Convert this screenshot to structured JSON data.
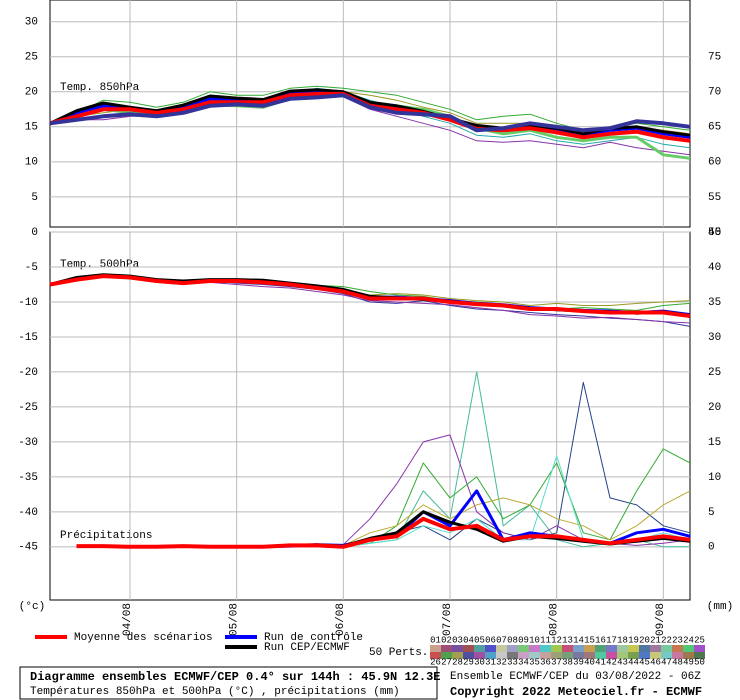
{
  "chart_data": [
    {
      "type": "line",
      "title": "Diagramme ensembles ECMWF/CEP 0.4° sur 144h : 45.9N 12.3E",
      "subtitle": "Températures 850hPa et 500hPa (°C) , précipitations (mm)",
      "credits": [
        "Ensemble ECMWF/CEP du 03/08/2022 - 06Z",
        "Copyright 2022 Meteociel.fr - ECMWF"
      ],
      "annotations": [
        "Temp. 850hPa"
      ],
      "x": [
        0,
        6,
        12,
        18,
        24,
        30,
        36,
        42,
        48,
        54,
        60,
        66,
        72,
        78,
        84,
        90,
        96,
        102,
        108,
        114,
        120,
        126,
        132,
        138,
        144
      ],
      "xlim": [
        0,
        144
      ],
      "ylim": [
        0.7,
        33.1
      ],
      "yticks": [
        5,
        10,
        15,
        20,
        25,
        30
      ],
      "y2lim": [
        50.7,
        83.1
      ],
      "y2ticks": [
        50,
        55,
        60,
        65,
        70,
        75
      ],
      "grid": true,
      "series": [
        {
          "name": "Moyenne des scénarios",
          "color": "#ff0000",
          "values": [
            15.5,
            16.5,
            17.5,
            17.5,
            17,
            17.5,
            18.5,
            18.5,
            18.5,
            19.5,
            19.7,
            19.7,
            18,
            17.5,
            17,
            16,
            14.7,
            14.5,
            14.8,
            14.2,
            13.5,
            14,
            14.3,
            13.5,
            13
          ]
        },
        {
          "name": "Run de contrôle",
          "color": "#0000ff",
          "values": [
            15.5,
            17,
            18,
            17.5,
            17,
            17.8,
            19,
            18.8,
            18.7,
            19.8,
            20,
            19.8,
            18.2,
            17.8,
            17,
            16,
            15,
            14.5,
            15,
            14.5,
            13.8,
            14.5,
            14.8,
            14,
            13.5
          ]
        },
        {
          "name": "Run CEP/ECMWF",
          "color": "#000000",
          "values": [
            15.5,
            17.3,
            18.4,
            17.8,
            17.3,
            18.1,
            19.4,
            19.1,
            18.9,
            20.1,
            20.3,
            20,
            18.5,
            18,
            17.2,
            16.2,
            15.2,
            14.8,
            15.2,
            14.8,
            14,
            14.8,
            15,
            14.3,
            13.8
          ]
        },
        {
          "color": "#33aa33",
          "values": [
            15.5,
            17,
            18.8,
            18.5,
            17.8,
            18.5,
            20,
            19.5,
            19.5,
            20.5,
            20.8,
            20.5,
            20,
            19.5,
            18.5,
            17.5,
            16,
            16.5,
            16.8,
            15.5,
            14.5,
            15,
            15.5,
            15,
            14.5
          ]
        },
        {
          "color": "#8833aa",
          "values": [
            15.5,
            16,
            16,
            16.5,
            16.5,
            17,
            18,
            18,
            18,
            19,
            19.5,
            19.3,
            17.5,
            16.5,
            15.5,
            14.5,
            13,
            12.8,
            13,
            12.5,
            12,
            12.8,
            12,
            11.5,
            11
          ]
        },
        {
          "color": "#999922",
          "values": [
            15.5,
            16.5,
            17,
            17.5,
            17.2,
            17.5,
            18.5,
            18.5,
            18.8,
            19.5,
            19.8,
            20,
            19.5,
            18.8,
            17.8,
            17,
            15.5,
            15.5,
            15.5,
            15,
            14,
            14.5,
            15,
            14.5,
            14
          ]
        },
        {
          "color": "#22aaaa",
          "values": [
            15.5,
            17,
            17.8,
            17.2,
            16.8,
            17.5,
            18.8,
            18.5,
            18.2,
            19.5,
            20.5,
            20,
            18.8,
            17.8,
            16.5,
            15.5,
            13.8,
            13.5,
            14,
            13,
            12.5,
            13,
            13.5,
            12.5,
            12
          ]
        },
        {
          "color": "#333399",
          "values": [
            15.5,
            16,
            16.5,
            16.8,
            16.5,
            17,
            18,
            18.2,
            18,
            19,
            19.2,
            19.5,
            17.8,
            17,
            16.8,
            16.5,
            14.5,
            14.8,
            15.5,
            15,
            14.5,
            14.8,
            15.8,
            15.5,
            15
          ]
        },
        {
          "color": "#66cc66",
          "values": [
            15.5,
            16.5,
            17.5,
            17,
            16.5,
            17.2,
            18.2,
            18,
            17.8,
            19,
            19.5,
            19.8,
            18.5,
            18,
            17.5,
            16.5,
            14.8,
            14,
            14.5,
            13.5,
            13,
            13.5,
            13.5,
            11,
            10.5
          ]
        }
      ],
      "perturbation_legend": {
        "label": "50 Perts.",
        "entries": [
          {
            "name": "01",
            "color": "#c8a08c"
          },
          {
            "name": "02",
            "color": "#a05078"
          },
          {
            "name": "03",
            "color": "#7850a0"
          },
          {
            "name": "04",
            "color": "#a05050"
          },
          {
            "name": "05",
            "color": "#50a0a0"
          },
          {
            "name": "06",
            "color": "#5050c8"
          },
          {
            "name": "07",
            "color": "#c8c8a0"
          },
          {
            "name": "08",
            "color": "#a0a0c8"
          },
          {
            "name": "09",
            "color": "#78c878"
          },
          {
            "name": "10",
            "color": "#c878c8"
          },
          {
            "name": "11",
            "color": "#50c8c8"
          },
          {
            "name": "12",
            "color": "#a0c850"
          },
          {
            "name": "13",
            "color": "#c85078"
          },
          {
            "name": "14",
            "color": "#78a0c8"
          },
          {
            "name": "15",
            "color": "#c8a050"
          },
          {
            "name": "16",
            "color": "#50a078"
          },
          {
            "name": "17",
            "color": "#7878c8"
          },
          {
            "name": "18",
            "color": "#a0c8a0"
          },
          {
            "name": "19",
            "color": "#c8c850"
          },
          {
            "name": "20",
            "color": "#5078a0"
          },
          {
            "name": "21",
            "color": "#a078a0"
          },
          {
            "name": "22",
            "color": "#78c8a0"
          },
          {
            "name": "23",
            "color": "#c87850"
          },
          {
            "name": "24",
            "color": "#50c878"
          },
          {
            "name": "25",
            "color": "#a050c8"
          },
          {
            "name": "26",
            "color": "#c85050"
          },
          {
            "name": "27",
            "color": "#50a050"
          },
          {
            "name": "28",
            "color": "#a0a050"
          },
          {
            "name": "29",
            "color": "#5050a0"
          },
          {
            "name": "30",
            "color": "#a050a0"
          },
          {
            "name": "31",
            "color": "#50a0c8"
          },
          {
            "name": "32",
            "color": "#c8c8c8"
          },
          {
            "name": "33",
            "color": "#787878"
          },
          {
            "name": "34",
            "color": "#c8a0c8"
          },
          {
            "name": "35",
            "color": "#a0c8c8"
          },
          {
            "name": "36",
            "color": "#c8a0a0"
          },
          {
            "name": "37",
            "color": "#a0a078"
          },
          {
            "name": "38",
            "color": "#78a078"
          },
          {
            "name": "39",
            "color": "#7878a0"
          },
          {
            "name": "40",
            "color": "#a07878"
          },
          {
            "name": "41",
            "color": "#50c8a0"
          },
          {
            "name": "42",
            "color": "#c850a0"
          },
          {
            "name": "43",
            "color": "#a0c878"
          },
          {
            "name": "44",
            "color": "#78a050"
          },
          {
            "name": "45",
            "color": "#5078c8"
          },
          {
            "name": "46",
            "color": "#c8c878"
          },
          {
            "name": "47",
            "color": "#78c8c8"
          },
          {
            "name": "48",
            "color": "#c878a0"
          },
          {
            "name": "49",
            "color": "#a07850"
          },
          {
            "name": "50",
            "color": "#507850"
          }
        ]
      }
    },
    {
      "type": "line",
      "annotations": [
        "Temp. 500hPa",
        "Précipitations"
      ],
      "ylabel": "(°c)",
      "y2label": "(mm)",
      "x": [
        0,
        6,
        12,
        18,
        24,
        30,
        36,
        42,
        48,
        54,
        60,
        66,
        72,
        78,
        84,
        90,
        96,
        102,
        108,
        114,
        120,
        126,
        132,
        138,
        144
      ],
      "xlim": [
        0,
        144
      ],
      "xticks": [
        {
          "value": 18,
          "label": "04/08"
        },
        {
          "value": 42,
          "label": "05/08"
        },
        {
          "value": 66,
          "label": "06/08"
        },
        {
          "value": 90,
          "label": "07/08"
        },
        {
          "value": 114,
          "label": "08/08"
        },
        {
          "value": 138,
          "label": "09/08"
        }
      ],
      "ylim": [
        -52.6,
        0
      ],
      "yticks": [
        0,
        -5,
        -10,
        -15,
        -20,
        -25,
        -30,
        -35,
        -40,
        -45
      ],
      "y2lim": [
        -7.6,
        45
      ],
      "y2ticks": [
        0,
        5,
        10,
        15,
        20,
        25,
        30,
        35,
        40,
        45
      ],
      "grid": true,
      "series": [
        {
          "color": "#ff0000",
          "values": [
            -7.5,
            -6.8,
            -6.3,
            -6.5,
            -7,
            -7.3,
            -7,
            -7,
            -7.2,
            -7.5,
            -8,
            -8.5,
            -9.5,
            -9.5,
            -9.5,
            -10,
            -10.3,
            -10.5,
            -11,
            -11,
            -11.3,
            -11.5,
            -11.5,
            -11.5,
            -12
          ]
        },
        {
          "color": "#0000ff",
          "values": [
            -7.5,
            -6.6,
            -6.2,
            -6.4,
            -6.9,
            -7.1,
            -6.9,
            -6.9,
            -7,
            -7.4,
            -7.8,
            -8.3,
            -9.3,
            -9.3,
            -9.5,
            -9.8,
            -10.2,
            -10.4,
            -10.8,
            -11,
            -11.2,
            -11.3,
            -11.5,
            -11.3,
            -11.8
          ]
        },
        {
          "color": "#000000",
          "values": [
            -7.5,
            -6.5,
            -6.1,
            -6.3,
            -6.8,
            -7,
            -6.8,
            -6.8,
            -6.9,
            -7.3,
            -7.7,
            -8.2,
            -9.2,
            -9.4,
            -9.6,
            -9.9,
            -10.3,
            -10.5,
            -10.9,
            -11.1,
            -11.3,
            -11.4,
            -11.6,
            -11.4,
            -11.9
          ]
        },
        {
          "color": "#333399",
          "values": [
            -7.5,
            -6.8,
            -6.3,
            -6.6,
            -7.2,
            -7.5,
            -7,
            -7.3,
            -7.5,
            -7.8,
            -8.2,
            -8.8,
            -10,
            -10.2,
            -9.8,
            -10.5,
            -11,
            -11.2,
            -11.5,
            -11.8,
            -12,
            -12.3,
            -12.5,
            -12.8,
            -13.5
          ]
        },
        {
          "color": "#999922",
          "values": [
            -7.5,
            -6.9,
            -6.4,
            -6.4,
            -6.9,
            -7.2,
            -6.8,
            -6.9,
            -7.4,
            -7.6,
            -7.8,
            -8.2,
            -9,
            -8.8,
            -9,
            -9.5,
            -9.8,
            -10,
            -10.5,
            -10.2,
            -10.5,
            -10.5,
            -10.2,
            -10,
            -9.8
          ]
        },
        {
          "color": "#8833aa",
          "values": [
            -7.5,
            -6.7,
            -6.2,
            -6.5,
            -7.1,
            -7.4,
            -7.2,
            -7.5,
            -7.8,
            -8,
            -8.5,
            -9,
            -9.8,
            -10,
            -10.2,
            -10.4,
            -10.8,
            -11.2,
            -11.8,
            -12,
            -12.3,
            -12.2,
            -12.5,
            -12.8,
            -13
          ]
        },
        {
          "color": "#33aa33",
          "values": [
            -7.5,
            -6.8,
            -6.4,
            -6.6,
            -7,
            -7.4,
            -7.1,
            -7,
            -7,
            -7.3,
            -7.6,
            -7.8,
            -8.5,
            -9,
            -9.2,
            -9.8,
            -10,
            -10.3,
            -10.8,
            -11,
            -10.8,
            -11,
            -11.2,
            -10.5,
            -10.2
          ]
        },
        {
          "axis": "y2",
          "color": "#ff0000",
          "values": [
            null,
            0.1,
            0.1,
            0,
            0,
            0.1,
            0,
            0,
            0,
            0.2,
            0.2,
            0,
            1,
            1.5,
            4,
            2.5,
            3,
            1,
            1.5,
            1.5,
            1,
            0.5,
            1,
            1.5,
            1
          ]
        },
        {
          "axis": "y2",
          "color": "#0000ff",
          "values": [
            null,
            0.1,
            0.1,
            0,
            0,
            0.1,
            0,
            0,
            0,
            0.1,
            0.3,
            0.2,
            1,
            1.5,
            5,
            3,
            8,
            1,
            2,
            1.5,
            1,
            0.5,
            2,
            2.5,
            1.5
          ]
        },
        {
          "axis": "y2",
          "color": "#000000",
          "values": [
            null,
            0.1,
            0.1,
            0,
            0,
            0.1,
            0,
            0,
            0,
            0.2,
            0.3,
            0.1,
            1.2,
            2,
            5,
            3.5,
            2.5,
            0.8,
            1.5,
            1.2,
            0.8,
            0.4,
            0.8,
            1.2,
            0.8
          ]
        },
        {
          "axis": "y2",
          "color": "#44bb99",
          "values": [
            null,
            0,
            0,
            0,
            0,
            0,
            0,
            0,
            0,
            0,
            0,
            0,
            0.5,
            1,
            8,
            4,
            25,
            3,
            6,
            1,
            0,
            0.5,
            1,
            0,
            0
          ]
        },
        {
          "axis": "y2",
          "color": "#224488",
          "values": [
            null,
            0,
            0,
            0,
            0,
            0,
            0,
            0,
            0,
            0,
            0,
            0.2,
            1,
            2,
            3,
            1,
            4,
            2,
            1,
            2,
            23.5,
            7,
            6,
            3,
            2
          ]
        },
        {
          "axis": "y2",
          "color": "#8833aa",
          "values": [
            null,
            0,
            0,
            0,
            0,
            0,
            0,
            0,
            0,
            0,
            0.1,
            0.3,
            4,
            9,
            15,
            16,
            5,
            2,
            1,
            3,
            1,
            0.5,
            0.2,
            0.5,
            1
          ]
        },
        {
          "axis": "y2",
          "color": "#33aa33",
          "values": [
            null,
            0,
            0,
            0,
            0,
            0,
            0,
            0,
            0,
            0,
            0,
            0,
            0.5,
            3,
            12,
            7,
            10,
            4,
            6,
            12,
            2,
            1,
            8,
            14,
            12
          ]
        },
        {
          "axis": "y2",
          "color": "#bbaa33",
          "values": [
            null,
            0,
            0,
            0,
            0,
            0,
            0,
            0,
            0,
            0,
            0,
            0.2,
            2,
            3,
            6,
            4,
            6,
            7,
            6,
            4,
            3,
            1,
            3,
            6,
            8
          ]
        },
        {
          "axis": "y2",
          "color": "#55ddcc",
          "values": [
            null,
            0,
            0,
            0,
            0,
            0,
            0,
            0,
            0,
            0,
            0,
            0,
            0.5,
            1,
            3,
            2,
            4,
            1,
            1,
            13,
            1,
            0.5,
            1,
            2,
            1
          ]
        }
      ]
    }
  ]
}
